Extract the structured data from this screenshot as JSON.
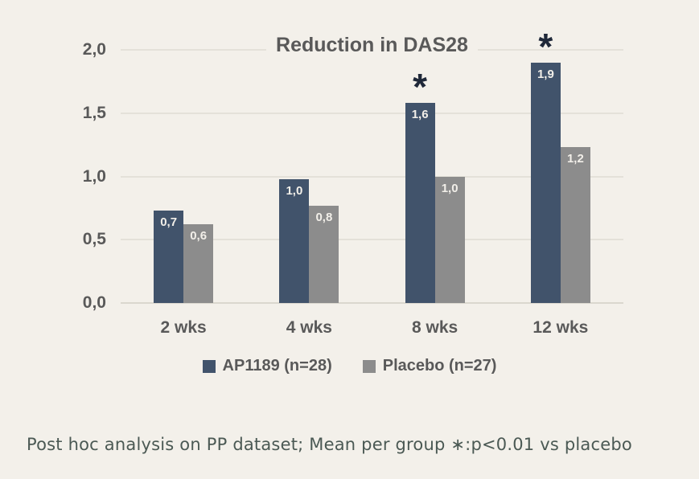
{
  "page": {
    "background_color": "#F3F0EA"
  },
  "chart_data": {
    "type": "bar",
    "title": "Reduction in DAS28",
    "categories": [
      "2 wks",
      "4 wks",
      "8 wks",
      "12 wks"
    ],
    "series": [
      {
        "name": "AP1189 (n=28)",
        "color": "#41536B",
        "values": [
          0.7,
          1.0,
          1.6,
          1.9
        ],
        "value_labels": [
          "0,7",
          "1,0",
          "1,6",
          "1,9"
        ],
        "bar_heights": [
          0.73,
          0.98,
          1.58,
          1.9
        ],
        "significance": [
          false,
          false,
          true,
          true
        ]
      },
      {
        "name": "Placebo (n=27)",
        "color": "#8C8C8C",
        "values": [
          0.6,
          0.8,
          1.0,
          1.2
        ],
        "value_labels": [
          "0,6",
          "0,8",
          "1,0",
          "1,2"
        ],
        "bar_heights": [
          0.62,
          0.77,
          1.0,
          1.23
        ],
        "significance": [
          false,
          false,
          false,
          false
        ]
      }
    ],
    "y_axis": {
      "min": 0,
      "max": 2,
      "step": 0.5,
      "tick_labels": [
        "0,0",
        "0,5",
        "1,0",
        "1,5",
        "2,0"
      ]
    },
    "sig_marker": "*",
    "grid": true,
    "legend_position": "bottom"
  },
  "footnote": {
    "text": "Post hoc analysis on PP dataset; Mean per group ∗:p<0.01 vs placebo"
  }
}
